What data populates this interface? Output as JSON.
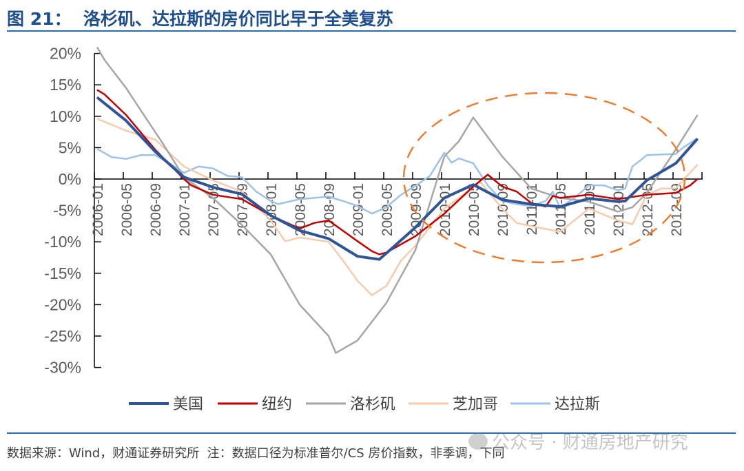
{
  "title": "图 21：  洛杉矶、达拉斯的房价同比早于全美复苏",
  "footer": "数据来源：Wind，财通证券研究所  注：数据口径为标准普尔/CS 房价指数，非季调，下同",
  "watermark": "公众号 · 财通房地产研究",
  "chart_data": {
    "type": "line",
    "title": "",
    "xlabel": "",
    "ylabel": "",
    "ylim": [
      -30,
      20
    ],
    "yticks": [
      20,
      15,
      10,
      5,
      0,
      -5,
      -10,
      -15,
      -20,
      -25,
      -30
    ],
    "ytick_labels": [
      "20%",
      "15%",
      "10%",
      "5%",
      "0%",
      "-5%",
      "-10%",
      "-15%",
      "-20%",
      "-25%",
      "-30%"
    ],
    "xrange": [
      "2006-01",
      "2012-12"
    ],
    "xtick_labels": [
      "2006-01",
      "2006-05",
      "2006-09",
      "2007-01",
      "2007-05",
      "2007-09",
      "2008-01",
      "2008-05",
      "2008-09",
      "2009-01",
      "2009-05",
      "2009-09",
      "2010-01",
      "2010-05",
      "2010-09",
      "2011-01",
      "2011-05",
      "2011-09",
      "2012-01",
      "2012-05",
      "2012-09"
    ],
    "grid": false,
    "legend_position": "bottom",
    "annotation": {
      "shape": "dashed-ellipse",
      "color": "#ED7D31",
      "covers": [
        "2009-08",
        "2012-12"
      ]
    },
    "series": [
      {
        "name": "美国",
        "color": "#2F5597",
        "x": [
          "2006-01",
          "2006-05",
          "2006-09",
          "2007-01",
          "2007-05",
          "2007-09",
          "2008-01",
          "2008-05",
          "2008-09",
          "2009-01",
          "2009-04",
          "2009-05",
          "2009-09",
          "2010-01",
          "2010-05",
          "2010-09",
          "2011-01",
          "2011-05",
          "2011-09",
          "2012-01",
          "2012-02",
          "2012-05",
          "2012-09",
          "2012-12"
        ],
        "y": [
          13.0,
          9.3,
          4.4,
          0.3,
          -1.3,
          -2.4,
          -5.8,
          -8.2,
          -9.5,
          -12.3,
          -12.8,
          -11.8,
          -7.7,
          -3.0,
          -0.9,
          -3.3,
          -4.0,
          -4.4,
          -3.1,
          -3.6,
          -3.5,
          -0.2,
          2.5,
          6.4
        ]
      },
      {
        "name": "纽约",
        "color": "#C00000",
        "x": [
          "2006-01",
          "2006-02",
          "2006-05",
          "2006-09",
          "2007-01",
          "2007-02",
          "2007-05",
          "2007-09",
          "2008-01",
          "2008-05",
          "2008-07",
          "2008-09",
          "2009-01",
          "2009-03",
          "2009-04",
          "2009-05",
          "2009-09",
          "2010-01",
          "2010-05",
          "2010-07",
          "2010-09",
          "2010-11",
          "2011-01",
          "2011-03",
          "2011-04",
          "2011-05",
          "2011-09",
          "2012-01",
          "2012-05",
          "2012-09",
          "2012-11",
          "2012-12"
        ],
        "y": [
          14.2,
          13.5,
          10.2,
          4.7,
          0.0,
          -1.0,
          -2.5,
          -3.2,
          -5.8,
          -7.9,
          -7.0,
          -6.6,
          -9.9,
          -11.5,
          -12.0,
          -11.7,
          -9.1,
          -5.5,
          -1.2,
          0.7,
          -1.2,
          -2.0,
          -3.8,
          -4.4,
          -2.7,
          -3.0,
          -2.5,
          -3.2,
          -2.5,
          -2.2,
          -1.0,
          0.0
        ]
      },
      {
        "name": "洛杉矶",
        "color": "#A6A6A6",
        "x": [
          "2006-01",
          "2006-02",
          "2006-03",
          "2006-05",
          "2006-07",
          "2006-10",
          "2007-01",
          "2007-05",
          "2007-09",
          "2008-01",
          "2008-05",
          "2008-09",
          "2008-10",
          "2009-01",
          "2009-05",
          "2009-09",
          "2010-01",
          "2010-03",
          "2010-05",
          "2010-09",
          "2011-01",
          "2011-05",
          "2011-09",
          "2012-01",
          "2012-03",
          "2012-05",
          "2012-09",
          "2012-12"
        ],
        "y": [
          21.0,
          19.0,
          17.5,
          14.5,
          11.0,
          5.8,
          0.3,
          -3.0,
          -7.3,
          -12.0,
          -20.0,
          -25.0,
          -27.7,
          -25.7,
          -19.7,
          -11.3,
          3.6,
          6.0,
          9.8,
          3.6,
          -1.5,
          -3.0,
          -3.6,
          -5.2,
          -4.5,
          -2.2,
          4.7,
          10.2
        ]
      },
      {
        "name": "芝加哥",
        "color": "#F8CBAD",
        "x": [
          "2006-01",
          "2006-05",
          "2006-09",
          "2007-01",
          "2007-05",
          "2007-09",
          "2008-01",
          "2008-03",
          "2008-05",
          "2008-09",
          "2008-11",
          "2009-01",
          "2009-03",
          "2009-05",
          "2009-07",
          "2009-09",
          "2010-01",
          "2010-05",
          "2010-06",
          "2010-09",
          "2010-11",
          "2011-01",
          "2011-05",
          "2011-09",
          "2012-01",
          "2012-03",
          "2012-05",
          "2012-07",
          "2012-09",
          "2012-12"
        ],
        "y": [
          9.6,
          7.7,
          6.3,
          2.0,
          -0.2,
          -2.0,
          -6.6,
          -9.9,
          -9.3,
          -10.0,
          -13.0,
          -16.2,
          -18.5,
          -17.0,
          -13.0,
          -10.6,
          -4.7,
          -1.3,
          -0.5,
          -4.7,
          -7.0,
          -7.5,
          -8.4,
          -4.7,
          -6.6,
          -7.2,
          -2.5,
          -1.5,
          -1.5,
          2.3
        ]
      },
      {
        "name": "达拉斯",
        "color": "#9DC3E6",
        "x": [
          "2006-01",
          "2006-03",
          "2006-05",
          "2006-07",
          "2006-09",
          "2006-11",
          "2007-01",
          "2007-03",
          "2007-05",
          "2007-07",
          "2007-09",
          "2007-11",
          "2008-01",
          "2008-02",
          "2008-05",
          "2008-09",
          "2008-11",
          "2009-01",
          "2009-03",
          "2009-05",
          "2009-07",
          "2009-09",
          "2009-11",
          "2010-01",
          "2010-02",
          "2010-03",
          "2010-05",
          "2010-07",
          "2010-09",
          "2010-11",
          "2011-01",
          "2011-03",
          "2011-04",
          "2011-05",
          "2011-07",
          "2011-09",
          "2011-11",
          "2012-01",
          "2012-02",
          "2012-03",
          "2012-05",
          "2012-09",
          "2012-10",
          "2012-12"
        ],
        "y": [
          4.8,
          3.5,
          3.2,
          3.8,
          3.8,
          2.5,
          1.0,
          2.0,
          1.7,
          0.5,
          0.3,
          -2.0,
          -3.5,
          -4.0,
          -3.2,
          -2.8,
          -3.5,
          -4.3,
          -5.5,
          -4.5,
          -2.5,
          -1.1,
          0.5,
          4.2,
          2.6,
          3.3,
          2.5,
          -1.0,
          -3.5,
          -4.0,
          -4.3,
          -3.5,
          -2.0,
          -4.6,
          -3.0,
          -1.0,
          -1.0,
          -1.8,
          -1.5,
          2.0,
          3.8,
          4.0,
          5.0,
          6.5
        ]
      }
    ]
  }
}
